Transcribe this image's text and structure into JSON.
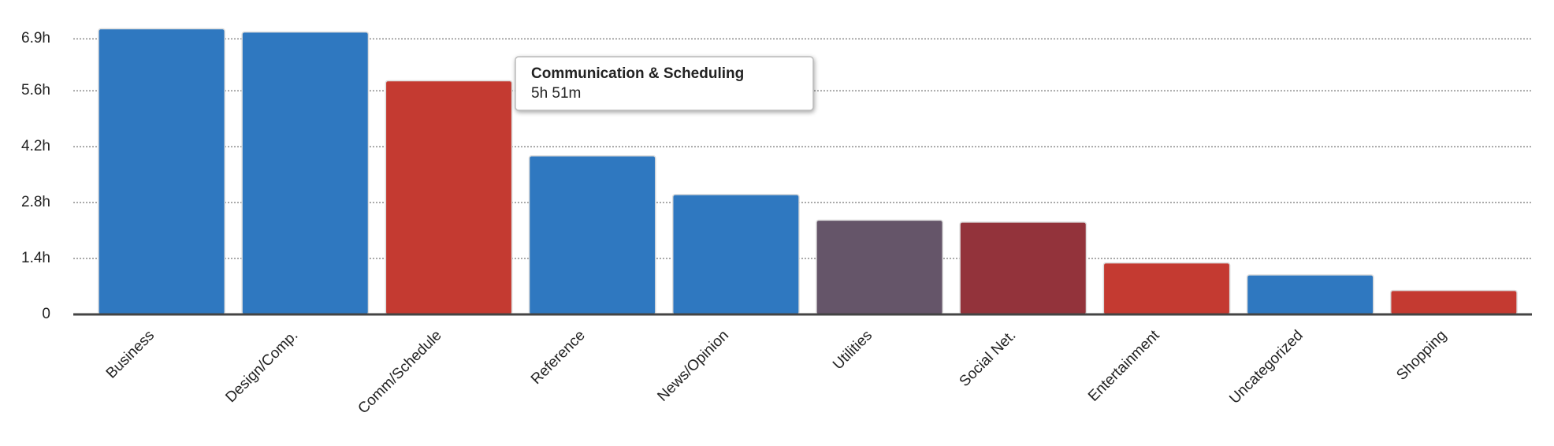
{
  "chart_data": {
    "type": "bar",
    "categories": [
      "Business",
      "Design/Comp.",
      "Comm/Schedule",
      "Reference",
      "News/Opinion",
      "Utilities",
      "Social Net.",
      "Entertainment",
      "Uncategorized",
      "Shopping"
    ],
    "values": [
      7.15,
      7.07,
      5.85,
      3.97,
      3.0,
      2.36,
      2.31,
      1.29,
      0.99,
      0.6
    ],
    "colors": [
      "#2f78c0",
      "#2f78c0",
      "#c43a31",
      "#2f78c0",
      "#2f78c0",
      "#655569",
      "#93333b",
      "#c43a31",
      "#2f78c0",
      "#c43a31"
    ],
    "ylim": [
      0,
      7.2
    ],
    "yticks": [
      0,
      {
        "value": 1.4,
        "label": "1.4h"
      },
      {
        "value": 2.8,
        "label": "2.8h"
      },
      {
        "value": 4.2,
        "label": "4.2h"
      },
      {
        "value": 5.6,
        "label": "5.6h"
      },
      {
        "value": 6.9,
        "label": "6.9h"
      }
    ],
    "grid": true,
    "tooltip": {
      "title": "Communication & Scheduling",
      "text": "5h 51m"
    }
  }
}
